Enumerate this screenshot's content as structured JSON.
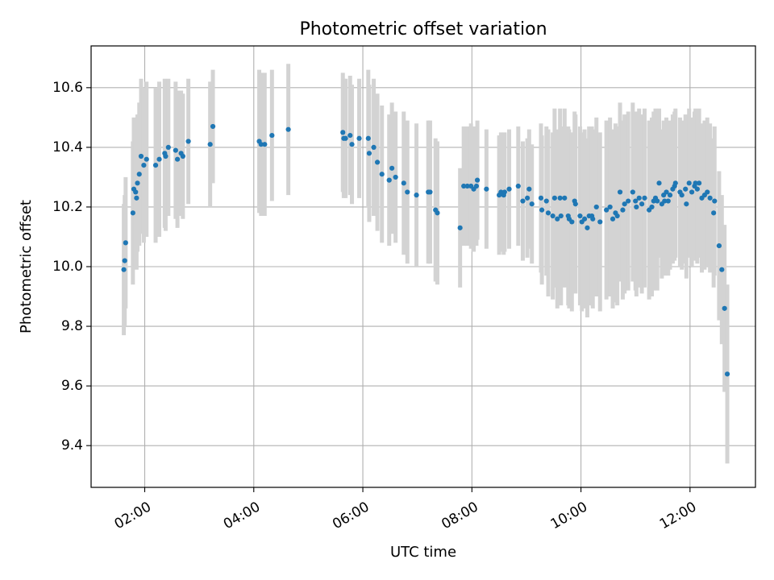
{
  "chart_data": {
    "type": "scatter",
    "title": "Photometric offset variation",
    "xlabel": "UTC time",
    "ylabel": "Photometric offset",
    "xlim": [
      "01:01",
      "13:12"
    ],
    "ylim": [
      9.26,
      10.74
    ],
    "x_ticks": [
      "02:00",
      "04:00",
      "06:00",
      "08:00",
      "10:00",
      "12:00"
    ],
    "y_ticks": [
      9.4,
      9.6,
      9.8,
      10.0,
      10.2,
      10.4,
      10.6
    ],
    "y_tick_labels": [
      "9.4",
      "9.6",
      "9.8",
      "10.0",
      "10.2",
      "10.4",
      "10.6"
    ],
    "grid": true,
    "colors": {
      "point": "#1f77b4",
      "errorbar": "#d3d3d3",
      "grid": "#b0b0b0"
    },
    "series": [
      {
        "x": [
          "01:37",
          "01:38",
          "01:39",
          "01:47",
          "01:48",
          "01:50",
          "01:51",
          "01:52",
          "01:54",
          "01:56",
          "01:59",
          "02:02",
          "02:12",
          "02:16",
          "02:22",
          "02:23",
          "02:26",
          "02:34",
          "02:36",
          "02:40",
          "02:42",
          "02:48",
          "03:12",
          "03:15",
          "04:06",
          "04:08",
          "04:12",
          "04:20",
          "04:38",
          "05:38",
          "05:39",
          "05:41",
          "05:46",
          "05:48",
          "05:56",
          "06:06",
          "06:07",
          "06:12",
          "06:16",
          "06:21",
          "06:29",
          "06:32",
          "06:36",
          "06:45",
          "06:49",
          "06:59",
          "07:12",
          "07:14",
          "07:20",
          "07:22",
          "07:47",
          "07:51",
          "07:55",
          "07:59",
          "08:02",
          "08:05",
          "08:06",
          "08:16",
          "08:30",
          "08:32",
          "08:35",
          "08:36",
          "08:41",
          "08:51",
          "08:56",
          "09:01",
          "09:03",
          "09:06",
          "09:16",
          "09:17",
          "09:22",
          "09:24",
          "09:29",
          "09:31",
          "09:34",
          "09:37",
          "09:38",
          "09:42",
          "09:46",
          "09:47",
          "09:50",
          "09:53",
          "09:54",
          "09:59",
          "10:01",
          "10:04",
          "10:07",
          "10:09",
          "10:12",
          "10:13",
          "10:17",
          "10:21",
          "10:28",
          "10:32",
          "10:35",
          "10:38",
          "10:40",
          "10:43",
          "10:46",
          "10:48",
          "10:52",
          "10:57",
          "11:00",
          "11:01",
          "11:04",
          "11:07",
          "11:10",
          "11:15",
          "11:18",
          "11:20",
          "11:22",
          "11:24",
          "11:26",
          "11:29",
          "11:31",
          "11:32",
          "11:34",
          "11:36",
          "11:38",
          "11:41",
          "11:43",
          "11:44",
          "11:49",
          "11:51",
          "11:55",
          "11:56",
          "11:59",
          "12:02",
          "12:05",
          "12:06",
          "12:08",
          "12:10",
          "12:13",
          "12:16",
          "12:19",
          "12:22",
          "12:26",
          "12:27",
          "12:32",
          "12:35",
          "12:38",
          "12:41"
        ],
        "y": [
          9.99,
          10.02,
          10.08,
          10.18,
          10.26,
          10.25,
          10.23,
          10.28,
          10.31,
          10.37,
          10.34,
          10.36,
          10.34,
          10.36,
          10.38,
          10.37,
          10.4,
          10.39,
          10.36,
          10.38,
          10.37,
          10.42,
          10.41,
          10.47,
          10.42,
          10.41,
          10.41,
          10.44,
          10.46,
          10.45,
          10.43,
          10.43,
          10.44,
          10.41,
          10.43,
          10.43,
          10.38,
          10.4,
          10.35,
          10.31,
          10.29,
          10.33,
          10.3,
          10.28,
          10.25,
          10.24,
          10.25,
          10.25,
          10.19,
          10.18,
          10.13,
          10.27,
          10.27,
          10.27,
          10.26,
          10.27,
          10.29,
          10.26,
          10.24,
          10.25,
          10.24,
          10.25,
          10.26,
          10.27,
          10.22,
          10.23,
          10.26,
          10.21,
          10.23,
          10.19,
          10.22,
          10.18,
          10.17,
          10.23,
          10.16,
          10.23,
          10.17,
          10.23,
          10.17,
          10.16,
          10.15,
          10.22,
          10.21,
          10.17,
          10.15,
          10.16,
          10.13,
          10.17,
          10.17,
          10.16,
          10.2,
          10.15,
          10.19,
          10.2,
          10.16,
          10.18,
          10.17,
          10.25,
          10.19,
          10.21,
          10.22,
          10.25,
          10.22,
          10.2,
          10.23,
          10.21,
          10.23,
          10.19,
          10.2,
          10.22,
          10.23,
          10.22,
          10.28,
          10.21,
          10.24,
          10.22,
          10.25,
          10.22,
          10.24,
          10.26,
          10.27,
          10.28,
          10.25,
          10.24,
          10.26,
          10.21,
          10.28,
          10.25,
          10.27,
          10.28,
          10.26,
          10.28,
          10.23,
          10.24,
          10.25,
          10.23,
          10.18,
          10.22,
          10.07,
          9.99,
          9.86,
          9.64
        ],
        "err": [
          0.22,
          0.22,
          0.22,
          0.24,
          0.24,
          0.25,
          0.24,
          0.23,
          0.24,
          0.26,
          0.26,
          0.26,
          0.26,
          0.26,
          0.25,
          0.25,
          0.23,
          0.23,
          0.23,
          0.21,
          0.21,
          0.21,
          0.21,
          0.19,
          0.24,
          0.24,
          0.24,
          0.22,
          0.22,
          0.2,
          0.2,
          0.2,
          0.2,
          0.2,
          0.2,
          0.23,
          0.23,
          0.23,
          0.23,
          0.23,
          0.22,
          0.22,
          0.22,
          0.24,
          0.24,
          0.24,
          0.24,
          0.24,
          0.24,
          0.24,
          0.2,
          0.2,
          0.2,
          0.21,
          0.21,
          0.2,
          0.2,
          0.2,
          0.2,
          0.2,
          0.2,
          0.2,
          0.2,
          0.2,
          0.2,
          0.2,
          0.2,
          0.2,
          0.25,
          0.25,
          0.25,
          0.28,
          0.28,
          0.3,
          0.3,
          0.3,
          0.3,
          0.3,
          0.3,
          0.3,
          0.3,
          0.3,
          0.3,
          0.3,
          0.3,
          0.3,
          0.3,
          0.3,
          0.3,
          0.3,
          0.3,
          0.3,
          0.3,
          0.3,
          0.3,
          0.3,
          0.3,
          0.3,
          0.3,
          0.3,
          0.3,
          0.3,
          0.3,
          0.3,
          0.3,
          0.3,
          0.3,
          0.3,
          0.3,
          0.3,
          0.3,
          0.3,
          0.25,
          0.25,
          0.25,
          0.25,
          0.25,
          0.25,
          0.25,
          0.25,
          0.25,
          0.25,
          0.25,
          0.25,
          0.25,
          0.25,
          0.25,
          0.25,
          0.25,
          0.25,
          0.25,
          0.25,
          0.25,
          0.25,
          0.25,
          0.25,
          0.25,
          0.25,
          0.25,
          0.25,
          0.28,
          0.3
        ]
      }
    ]
  }
}
